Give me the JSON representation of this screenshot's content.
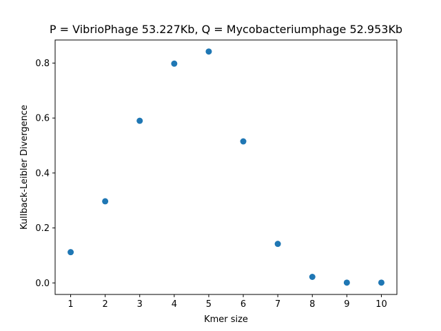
{
  "chart_data": {
    "type": "scatter",
    "title": "P = VibrioPhage 53.227Kb, Q = Mycobacteriumphage 52.953Kb",
    "xlabel": "Kmer size",
    "ylabel": "Kullback-Leibler Divergence",
    "x": [
      1,
      2,
      3,
      4,
      5,
      6,
      7,
      8,
      9,
      10
    ],
    "y": [
      0.112,
      0.297,
      0.59,
      0.798,
      0.842,
      0.515,
      0.142,
      0.022,
      0.001,
      0.001
    ],
    "xlim": [
      0.55,
      10.45
    ],
    "ylim": [
      -0.042,
      0.884
    ],
    "xticks": [
      1,
      2,
      3,
      4,
      5,
      6,
      7,
      8,
      9,
      10
    ],
    "yticks": [
      0.0,
      0.2,
      0.4,
      0.6,
      0.8
    ],
    "ytick_labels": [
      "0.0",
      "0.2",
      "0.4",
      "0.6",
      "0.8"
    ],
    "marker_color": "#1f77b4",
    "grid": false,
    "legend": false
  }
}
